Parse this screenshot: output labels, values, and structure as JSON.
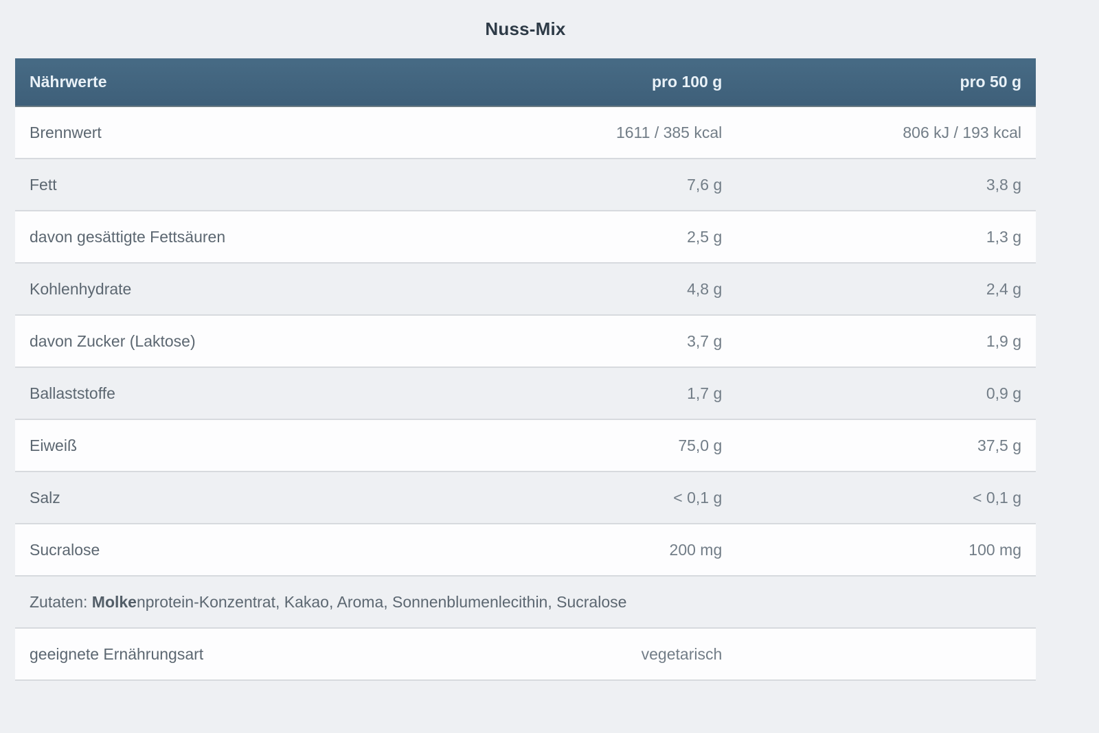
{
  "title": "Nuss-Mix",
  "colors": {
    "page_background": "#eef0f3",
    "header_background": "#43657e",
    "header_text": "#e9f1f7",
    "white_row": "#fdfdfe",
    "row_border": "#d7dade",
    "label_text": "#5c6771",
    "value_text": "#727d87",
    "title_text": "#2e3b47"
  },
  "table": {
    "headers": [
      "Nährwerte",
      "pro 100 g",
      "pro 50 g"
    ],
    "rows": [
      {
        "label": "Brennwert",
        "per100": "1611 / 385 kcal",
        "per50": "806 kJ / 193 kcal"
      },
      {
        "label": "Fett",
        "per100": "7,6 g",
        "per50": "3,8 g"
      },
      {
        "label": "davon gesättigte Fettsäuren",
        "per100": "2,5 g",
        "per50": "1,3 g"
      },
      {
        "label": "Kohlenhydrate",
        "per100": "4,8 g",
        "per50": "2,4 g"
      },
      {
        "label": "davon Zucker (Laktose)",
        "per100": "3,7 g",
        "per50": "1,9 g"
      },
      {
        "label": "Ballaststoffe",
        "per100": "1,7 g",
        "per50": "0,9 g"
      },
      {
        "label": "Eiweiß",
        "per100": "75,0 g",
        "per50": "37,5 g"
      },
      {
        "label": "Salz",
        "per100": "< 0,1 g",
        "per50": "< 0,1 g"
      },
      {
        "label": "Sucralose",
        "per100": "200 mg",
        "per50": "100 mg"
      }
    ],
    "ingredients": {
      "prefix": "Zutaten: ",
      "bold": "Molke",
      "rest": "nprotein-Konzentrat, Kakao, Aroma, Sonnenblumenlecithin, Sucralose"
    },
    "diet": {
      "label": "geeignete Ernährungsart",
      "value": "vegetarisch"
    }
  }
}
